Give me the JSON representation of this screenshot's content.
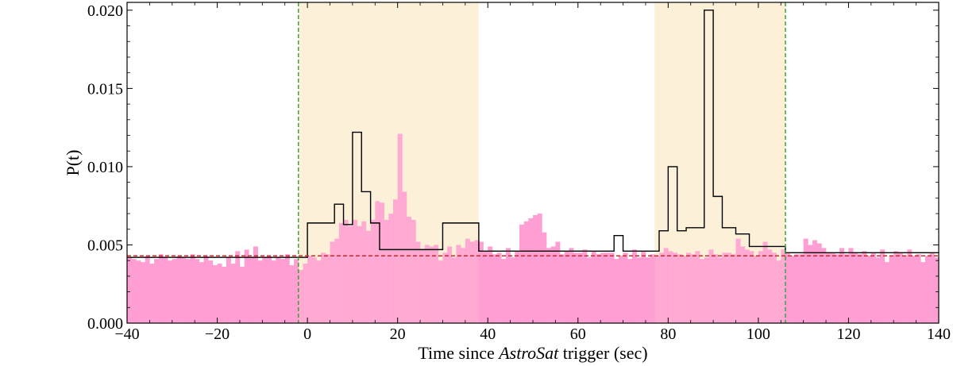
{
  "chart_data": {
    "type": "histogram",
    "xlabel_parts": [
      {
        "text": "Time since ",
        "italic": false
      },
      {
        "text": "AstroSat",
        "italic": true
      },
      {
        "text": " trigger (sec)",
        "italic": false
      }
    ],
    "ylabel": "P(t)",
    "xlim": [
      -40,
      140
    ],
    "ylim": [
      0,
      0.0205
    ],
    "xticks": [
      -40,
      -20,
      0,
      20,
      40,
      60,
      80,
      100,
      120,
      140
    ],
    "xtick_labels": [
      "−40",
      "−20",
      "0",
      "20",
      "40",
      "60",
      "80",
      "100",
      "120",
      "140"
    ],
    "yticks": [
      0.0,
      0.005,
      0.01,
      0.015,
      0.02
    ],
    "ytick_labels": [
      "0.000",
      "0.005",
      "0.010",
      "0.015",
      "0.020"
    ],
    "colors": {
      "histogram": "#ff9ed2",
      "shade": "#fdf0d8",
      "step_line": "#000000",
      "baseline": "#d62728",
      "vline": "#2ca02c"
    },
    "bin_start": -40,
    "bin_width": 1,
    "bin_values": [
      0.0042,
      0.0041,
      0.004,
      0.0039,
      0.0043,
      0.0038,
      0.0041,
      0.0044,
      0.0042,
      0.004,
      0.0041,
      0.0043,
      0.0042,
      0.0041,
      0.0044,
      0.0041,
      0.0039,
      0.0043,
      0.004,
      0.0037,
      0.0038,
      0.0036,
      0.0042,
      0.0038,
      0.0046,
      0.0036,
      0.0047,
      0.0042,
      0.0049,
      0.004,
      0.0042,
      0.0043,
      0.004,
      0.0042,
      0.0041,
      0.0044,
      0.0037,
      0.0041,
      0.0034,
      0.0038,
      0.0043,
      0.0042,
      0.004,
      0.0045,
      0.0044,
      0.0052,
      0.0054,
      0.0064,
      0.0066,
      0.0062,
      0.0066,
      0.0062,
      0.0065,
      0.0059,
      0.0066,
      0.0078,
      0.0077,
      0.0066,
      0.007,
      0.0079,
      0.0121,
      0.0084,
      0.0068,
      0.0066,
      0.0052,
      0.0047,
      0.005,
      0.0049,
      0.005,
      0.004,
      0.0045,
      0.0049,
      0.0042,
      0.005,
      0.0048,
      0.0054,
      0.0052,
      0.0053,
      0.0052,
      0.0046,
      0.0049,
      0.0044,
      0.0045,
      0.0041,
      0.0048,
      0.0042,
      0.0046,
      0.0063,
      0.0065,
      0.0067,
      0.0069,
      0.007,
      0.0058,
      0.0048,
      0.0049,
      0.0052,
      0.0044,
      0.0046,
      0.0048,
      0.0045,
      0.0045,
      0.0047,
      0.0042,
      0.0046,
      0.0044,
      0.0045,
      0.0045,
      0.0045,
      0.0041,
      0.0043,
      0.0045,
      0.0041,
      0.0047,
      0.0042,
      0.0046,
      0.0042,
      0.0044,
      0.0043,
      0.0045,
      0.0048,
      0.0046,
      0.0045,
      0.0044,
      0.0043,
      0.0045,
      0.0044,
      0.0046,
      0.0041,
      0.0042,
      0.0047,
      0.0044,
      0.0042,
      0.0045,
      0.0045,
      0.0044,
      0.0054,
      0.0049,
      0.0047,
      0.0046,
      0.0043,
      0.0046,
      0.0052,
      0.0047,
      0.0045,
      0.004,
      0.0047,
      0.0045,
      0.0043,
      0.0044,
      0.0044,
      0.0054,
      0.005,
      0.0053,
      0.0051,
      0.0048,
      0.0045,
      0.0045,
      0.0044,
      0.0048,
      0.0044,
      0.0048,
      0.0045,
      0.0044,
      0.0046,
      0.0043,
      0.0045,
      0.0042,
      0.0047,
      0.0039,
      0.0043,
      0.0046,
      0.0045,
      0.0043,
      0.0047,
      0.0043,
      0.0044,
      0.0039,
      0.0043,
      0.0045,
      0.0042
    ],
    "step_edges": [
      -40,
      -2,
      0,
      6,
      8,
      10,
      12,
      14,
      16,
      28,
      30,
      36,
      38,
      66,
      68,
      70,
      78,
      80,
      82,
      84,
      86,
      88,
      90,
      92,
      95,
      98,
      100,
      106,
      140
    ],
    "step_values": [
      0.0042,
      0.0042,
      0.0064,
      0.0076,
      0.0063,
      0.0122,
      0.0084,
      0.0064,
      0.0047,
      0.0047,
      0.0064,
      0.0064,
      0.0046,
      0.0046,
      0.0056,
      0.0046,
      0.0059,
      0.01,
      0.0059,
      0.0061,
      0.0061,
      0.02,
      0.0081,
      0.0061,
      0.0057,
      0.0049,
      0.0049,
      0.0045
    ],
    "baseline": 0.0043,
    "vlines": [
      -2,
      106
    ],
    "shaded_regions": [
      [
        -2,
        38
      ],
      [
        77,
        106
      ]
    ]
  }
}
